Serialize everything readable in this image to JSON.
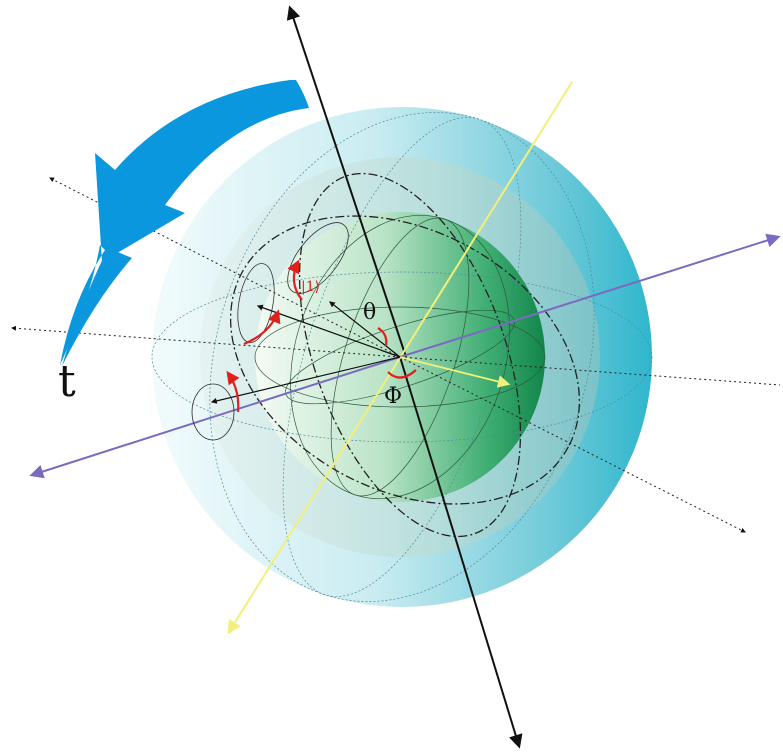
{
  "labels": {
    "theta": "θ",
    "phi": "Φ",
    "time": "t",
    "ket_one": "|1⟩"
  },
  "colors": {
    "outer_sphere": "#5fc6d8",
    "inner_sphere": "#1e9a5a",
    "rotation_arrow": "#0a97dd",
    "axis_primary": "#111111",
    "axis_yellow": "#f2ef7a",
    "axis_purple": "#7a6bc0",
    "angle_marker": "#e0201c"
  },
  "icons": {
    "rotation": "curved-rotation-arrow-icon"
  }
}
